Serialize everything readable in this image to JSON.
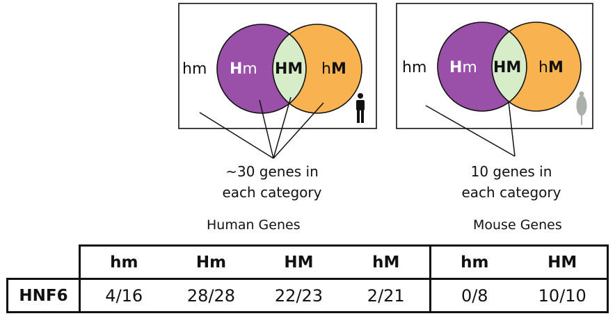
{
  "human_venn": {
    "outside_label": "hm",
    "left_label": {
      "bold": "H",
      "regular": "m"
    },
    "center_label": "HM",
    "right_label": {
      "regular": "h",
      "bold": "M"
    },
    "annotation_line1": "~30 genes in",
    "annotation_line2": "each category",
    "section_label": "Human Genes"
  },
  "mouse_venn": {
    "outside_label": "hm",
    "left_label": {
      "bold": "H",
      "regular": "m"
    },
    "center_label": "HM",
    "right_label": {
      "regular": "h",
      "bold": "M"
    },
    "annotation_line1": "10 genes in",
    "annotation_line2": "each category",
    "section_label": "Mouse Genes"
  },
  "colors": {
    "left_circle": "#9a4fa8",
    "right_circle": "#f8b24f",
    "overlap": "#d7ecc8",
    "mouse_icon": "#aab0aa"
  },
  "icons": [
    "human-figure-icon",
    "mouse-icon"
  ],
  "table": {
    "columns": [
      "hm",
      "Hm",
      "HM",
      "hM",
      "hm",
      "HM"
    ],
    "rows": [
      {
        "label": "HNF6",
        "values": [
          "4/16",
          "28/28",
          "22/23",
          "2/21",
          "0/8",
          "10/10"
        ]
      }
    ]
  }
}
